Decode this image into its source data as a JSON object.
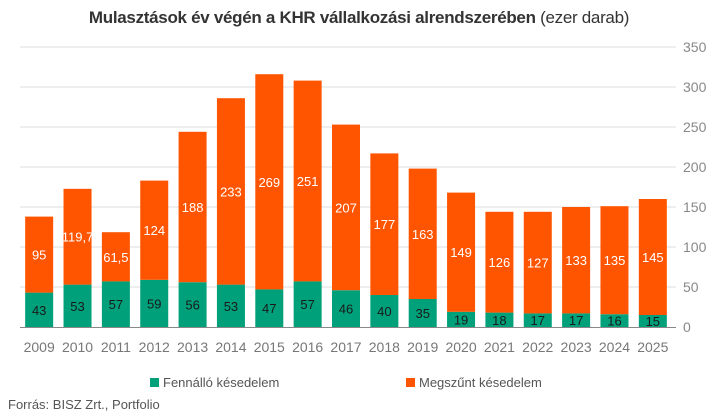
{
  "chart_data": {
    "type": "bar",
    "stacked": true,
    "title": "Mulasztások év végén a KHR vállalkozási alrendszerében",
    "subtitle": "(ezer darab)",
    "xlabel": "",
    "ylabel": "",
    "ylim": [
      0,
      350
    ],
    "yticks": [
      "0",
      "50",
      "100",
      "150",
      "200",
      "250",
      "300",
      "350"
    ],
    "y_axis_side": "right",
    "grid": true,
    "legend_position": "bottom",
    "categories": [
      "2009",
      "2010",
      "2011",
      "2012",
      "2013",
      "2014",
      "2015",
      "2016",
      "2017",
      "2018",
      "2019",
      "2020",
      "2021",
      "2022",
      "2023",
      "2024",
      "2025"
    ],
    "series": [
      {
        "name": "Fennálló késedelem",
        "color": "#00a07a",
        "values": [
          43,
          53,
          57,
          59,
          56,
          53,
          47,
          57,
          46,
          40,
          35,
          19,
          18,
          17,
          17,
          16,
          15
        ],
        "labels": [
          "43",
          "53",
          "57",
          "59",
          "56",
          "53",
          "47",
          "57",
          "46",
          "40",
          "35",
          "19",
          "18",
          "17",
          "17",
          "16",
          "15"
        ]
      },
      {
        "name": "Megszűnt késedelem",
        "color": "#ff5400",
        "values": [
          95,
          119.7,
          61.5,
          124,
          188,
          233,
          269,
          251,
          207,
          177,
          163,
          149,
          126,
          127,
          133,
          135,
          145
        ],
        "labels": [
          "95",
          "119,7",
          "61,5",
          "124",
          "188",
          "233",
          "269",
          "251",
          "207",
          "177",
          "163",
          "149",
          "126",
          "127",
          "133",
          "135",
          "145"
        ]
      }
    ]
  },
  "header": {
    "title_bold": "Mulasztások év végén a KHR vállalkozási alrendszerében",
    "title_sub": "(ezer darab)"
  },
  "legend": {
    "items": [
      {
        "label": "Fennálló késedelem",
        "color": "#00a07a"
      },
      {
        "label": "Megszűnt késedelem",
        "color": "#ff5400"
      }
    ]
  },
  "footer": {
    "source_label": "Forrás:",
    "source_text": "BISZ Zrt., Portfolio"
  }
}
